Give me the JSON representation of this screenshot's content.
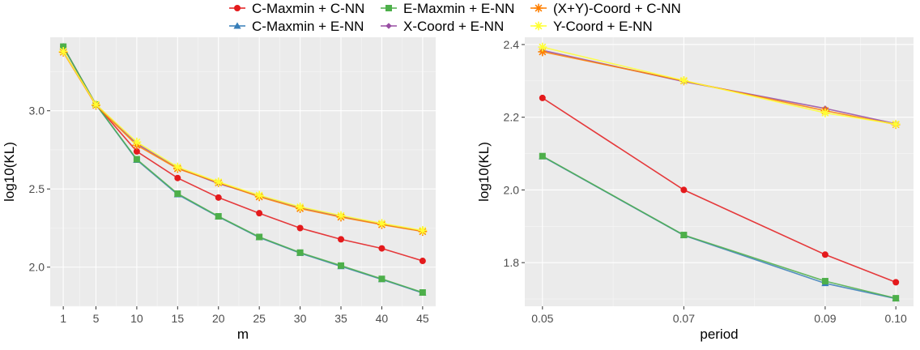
{
  "legend": {
    "entries": [
      {
        "key": "cmax_cnn",
        "label": "C-Maxmin + C-NN",
        "color": "#e41a1c",
        "shape": "circle"
      },
      {
        "key": "cmax_enn",
        "label": "C-Maxmin + E-NN",
        "color": "#377eb8",
        "shape": "triangle"
      },
      {
        "key": "emax_enn",
        "label": "E-Maxmin + E-NN",
        "color": "#4daf4a",
        "shape": "square"
      },
      {
        "key": "xcoord_enn",
        "label": "X-Coord + E-NN",
        "color": "#984ea3",
        "shape": "diamond"
      },
      {
        "key": "xycoord_cnn",
        "label": "(X+Y)-Coord + C-NN",
        "color": "#ff7f00",
        "shape": "asterisk"
      },
      {
        "key": "ycoord_enn",
        "label": "Y-Coord + E-NN",
        "color": "#ffff33",
        "shape": "cross"
      }
    ]
  },
  "chart_data": [
    {
      "type": "line",
      "xlabel": "m",
      "ylabel": "log10(KL)",
      "x": [
        1,
        5,
        10,
        15,
        20,
        25,
        30,
        35,
        40,
        45
      ],
      "x_ticks": [
        1,
        5,
        10,
        15,
        20,
        25,
        30,
        35,
        40,
        45
      ],
      "xlim": [
        -0.6,
        46.6
      ],
      "y_ticks": [
        2.0,
        2.5,
        3.0
      ],
      "y_tick_labels": [
        "2.0",
        "2.5",
        "3.0"
      ],
      "ylim": [
        1.75,
        3.47
      ],
      "grid": true,
      "series": [
        {
          "key": "cmax_cnn",
          "values": [
            3.41,
            3.04,
            2.74,
            2.57,
            2.445,
            2.345,
            2.25,
            2.178,
            2.12,
            2.04
          ]
        },
        {
          "key": "cmax_enn",
          "values": [
            3.41,
            3.04,
            2.685,
            2.465,
            2.322,
            2.19,
            2.09,
            2.005,
            1.922,
            1.835
          ]
        },
        {
          "key": "emax_enn",
          "values": [
            3.41,
            3.04,
            2.69,
            2.47,
            2.325,
            2.193,
            2.093,
            2.01,
            1.925,
            1.838
          ]
        },
        {
          "key": "xcoord_enn",
          "values": [
            3.38,
            3.04,
            2.79,
            2.635,
            2.535,
            2.455,
            2.38,
            2.325,
            2.275,
            2.23
          ]
        },
        {
          "key": "xycoord_cnn",
          "values": [
            3.375,
            3.035,
            2.78,
            2.63,
            2.54,
            2.45,
            2.375,
            2.32,
            2.272,
            2.228
          ]
        },
        {
          "key": "ycoord_enn",
          "values": [
            3.38,
            3.04,
            2.8,
            2.64,
            2.545,
            2.46,
            2.385,
            2.33,
            2.28,
            2.235
          ]
        }
      ]
    },
    {
      "type": "line",
      "xlabel": "period",
      "ylabel": "log10(KL)",
      "x": [
        0.05,
        0.07,
        0.09,
        0.1
      ],
      "x_ticks": [
        0.05,
        0.07,
        0.09,
        0.1
      ],
      "x_tick_labels": [
        "0.05",
        "0.07",
        "0.09",
        "0.10"
      ],
      "xlim": [
        0.0475,
        0.1025
      ],
      "y_ticks": [
        1.8,
        2.0,
        2.2,
        2.4
      ],
      "y_tick_labels": [
        "1.8",
        "2.0",
        "2.2",
        "2.4"
      ],
      "ylim": [
        1.68,
        2.42
      ],
      "grid": true,
      "series": [
        {
          "key": "cmax_cnn",
          "values": [
            2.253,
            2.0,
            1.822,
            1.746
          ]
        },
        {
          "key": "cmax_enn",
          "values": [
            2.092,
            1.875,
            1.743,
            1.701
          ]
        },
        {
          "key": "emax_enn",
          "values": [
            2.093,
            1.876,
            1.749,
            1.702
          ]
        },
        {
          "key": "xcoord_enn",
          "values": [
            2.384,
            2.298,
            2.224,
            2.182
          ]
        },
        {
          "key": "xycoord_cnn",
          "values": [
            2.38,
            2.3,
            2.218,
            2.18
          ]
        },
        {
          "key": "ycoord_enn",
          "values": [
            2.393,
            2.301,
            2.212,
            2.181
          ]
        }
      ]
    }
  ]
}
